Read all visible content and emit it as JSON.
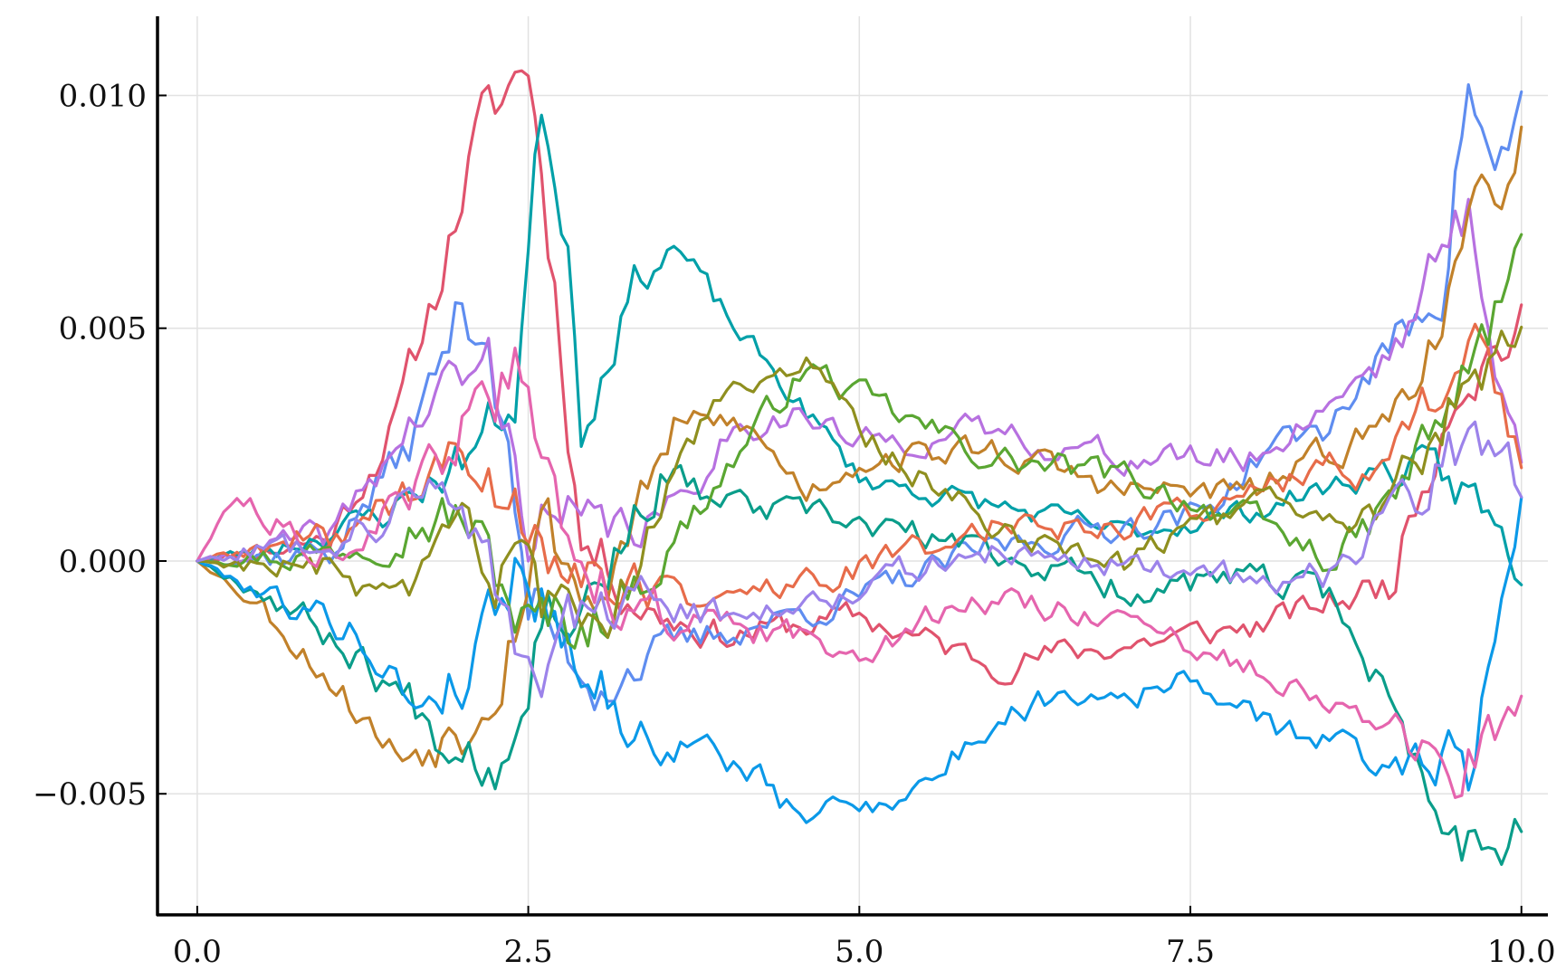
{
  "chart_data": {
    "type": "line",
    "title": "",
    "xlabel": "",
    "ylabel": "",
    "xlim": [
      -0.3,
      10.2
    ],
    "ylim": [
      -0.0076,
      0.0117
    ],
    "grid": true,
    "legend": "none",
    "x_ticks": [
      {
        "value": 0.0,
        "label": "0.0"
      },
      {
        "value": 2.5,
        "label": "2.5"
      },
      {
        "value": 5.0,
        "label": "5.0"
      },
      {
        "value": 7.5,
        "label": "7.5"
      },
      {
        "value": 10.0,
        "label": "10.0"
      }
    ],
    "y_ticks": [
      {
        "value": -0.005,
        "label": "−0.005"
      },
      {
        "value": 0.0,
        "label": "0.000"
      },
      {
        "value": 0.005,
        "label": "0.005"
      },
      {
        "value": 0.01,
        "label": "0.010"
      }
    ],
    "colors": [
      "#e0536d",
      "#00a0a8",
      "#5f8df0",
      "#b771e0",
      "#c1812a",
      "#0a9d8a",
      "#0b99e8",
      "#e76c4a",
      "#5aa632",
      "#8f8f1f",
      "#e565ae",
      "#9c83ea"
    ],
    "n_points": 201,
    "x": {
      "start": 0.0,
      "end": 10.0
    },
    "series": [
      {
        "color_index": 0,
        "seed": 11,
        "noise": 0.0005,
        "waypoints": [
          [
            0,
            0
          ],
          [
            1,
            0.0005
          ],
          [
            1.5,
            0.003
          ],
          [
            1.8,
            0.0058
          ],
          [
            2.1,
            0.009
          ],
          [
            2.5,
            0.0108
          ],
          [
            2.7,
            0.006
          ],
          [
            2.9,
            0.0005
          ],
          [
            3.4,
            -0.001
          ],
          [
            4,
            -0.0016
          ],
          [
            5,
            -0.0012
          ],
          [
            6,
            -0.0022
          ],
          [
            7,
            -0.0018
          ],
          [
            8,
            -0.0014
          ],
          [
            9,
            -0.0005
          ],
          [
            9.5,
            0.004
          ],
          [
            10,
            0.005
          ]
        ]
      },
      {
        "color_index": 1,
        "seed": 23,
        "noise": 0.0004,
        "waypoints": [
          [
            0,
            0
          ],
          [
            0.6,
            0.0003
          ],
          [
            1.4,
            0.001
          ],
          [
            2,
            0.0022
          ],
          [
            2.4,
            0.0035
          ],
          [
            2.6,
            0.0098
          ],
          [
            2.8,
            0.007
          ],
          [
            2.9,
            0.003
          ],
          [
            3.3,
            0.006
          ],
          [
            3.6,
            0.0068
          ],
          [
            4,
            0.0052
          ],
          [
            4.6,
            0.0032
          ],
          [
            5,
            0.0018
          ],
          [
            6,
            0.0012
          ],
          [
            7,
            0.0006
          ],
          [
            8,
            0.0011
          ],
          [
            9,
            0.002
          ],
          [
            9.6,
            0.0015
          ],
          [
            10,
            -0.0002
          ]
        ]
      },
      {
        "color_index": 2,
        "seed": 37,
        "noise": 0.0005,
        "waypoints": [
          [
            0,
            0
          ],
          [
            1,
            0.0002
          ],
          [
            1.6,
            0.0025
          ],
          [
            2,
            0.0055
          ],
          [
            2.2,
            0.005
          ],
          [
            2.5,
            -0.001
          ],
          [
            3,
            -0.0025
          ],
          [
            4,
            -0.0015
          ],
          [
            5,
            -0.0008
          ],
          [
            6,
            0.0003
          ],
          [
            7,
            0.0008
          ],
          [
            7.6,
            0.001
          ],
          [
            8.1,
            0.0025
          ],
          [
            8.5,
            0.0028
          ],
          [
            9,
            0.0045
          ],
          [
            9.4,
            0.006
          ],
          [
            9.6,
            0.0105
          ],
          [
            9.8,
            0.008
          ],
          [
            10,
            0.0098
          ]
        ]
      },
      {
        "color_index": 3,
        "seed": 41,
        "noise": 0.0005,
        "waypoints": [
          [
            0,
            0
          ],
          [
            1,
            0.0005
          ],
          [
            1.5,
            0.0025
          ],
          [
            1.8,
            0.0035
          ],
          [
            2.2,
            0.0042
          ],
          [
            2.5,
            0.001
          ],
          [
            3,
            0.0005
          ],
          [
            3.6,
            0.001
          ],
          [
            4,
            0.0028
          ],
          [
            4.5,
            0.0032
          ],
          [
            5,
            0.0025
          ],
          [
            6,
            0.0028
          ],
          [
            7,
            0.0022
          ],
          [
            8,
            0.0022
          ],
          [
            9,
            0.0045
          ],
          [
            9.6,
            0.0075
          ],
          [
            10,
            0.002
          ]
        ]
      },
      {
        "color_index": 4,
        "seed": 53,
        "noise": 0.0005,
        "waypoints": [
          [
            0,
            0
          ],
          [
            0.5,
            -0.001
          ],
          [
            1,
            -0.0025
          ],
          [
            1.5,
            -0.0042
          ],
          [
            2,
            -0.0035
          ],
          [
            2.3,
            -0.002
          ],
          [
            2.6,
            0.001
          ],
          [
            3,
            -0.001
          ],
          [
            3.6,
            0.0028
          ],
          [
            4.1,
            0.003
          ],
          [
            4.6,
            0.0015
          ],
          [
            5,
            0.0022
          ],
          [
            6,
            0.0024
          ],
          [
            7,
            0.0015
          ],
          [
            8,
            0.0015
          ],
          [
            9,
            0.003
          ],
          [
            9.5,
            0.006
          ],
          [
            10,
            0.0092
          ]
        ]
      },
      {
        "color_index": 5,
        "seed": 67,
        "noise": 0.0005,
        "waypoints": [
          [
            0,
            0
          ],
          [
            0.6,
            -0.0008
          ],
          [
            1.2,
            -0.002
          ],
          [
            1.8,
            -0.0035
          ],
          [
            2.3,
            -0.0042
          ],
          [
            2.6,
            -0.001
          ],
          [
            3,
            -0.0005
          ],
          [
            3.5,
            0.0018
          ],
          [
            4,
            0.0012
          ],
          [
            5,
            0.0008
          ],
          [
            6,
            0.0002
          ],
          [
            7,
            -0.0006
          ],
          [
            8,
            -0.0004
          ],
          [
            8.6,
            -0.0008
          ],
          [
            9,
            -0.003
          ],
          [
            9.3,
            -0.005
          ],
          [
            9.6,
            -0.006
          ],
          [
            10,
            -0.0055
          ]
        ]
      },
      {
        "color_index": 6,
        "seed": 79,
        "noise": 0.0005,
        "waypoints": [
          [
            0,
            0
          ],
          [
            0.6,
            -0.0008
          ],
          [
            1.2,
            -0.0015
          ],
          [
            1.6,
            -0.003
          ],
          [
            2,
            -0.0025
          ],
          [
            2.4,
            0.0
          ],
          [
            2.8,
            -0.0015
          ],
          [
            3.3,
            -0.0038
          ],
          [
            3.8,
            -0.004
          ],
          [
            4.2,
            -0.0045
          ],
          [
            4.5,
            -0.0055
          ],
          [
            5,
            -0.0052
          ],
          [
            5.5,
            -0.0048
          ],
          [
            6,
            -0.0035
          ],
          [
            6.5,
            -0.0028
          ],
          [
            7,
            -0.0028
          ],
          [
            7.6,
            -0.0026
          ],
          [
            8,
            -0.0035
          ],
          [
            8.5,
            -0.0038
          ],
          [
            9,
            -0.0045
          ],
          [
            9.3,
            -0.0038
          ],
          [
            9.6,
            -0.0045
          ],
          [
            10,
            0.0015
          ]
        ]
      },
      {
        "color_index": 7,
        "seed": 89,
        "noise": 0.0005,
        "waypoints": [
          [
            0,
            0
          ],
          [
            1,
            0.0005
          ],
          [
            1.6,
            0.0015
          ],
          [
            2,
            0.0022
          ],
          [
            2.5,
            0.001
          ],
          [
            3,
            -0.0005
          ],
          [
            4,
            -0.0008
          ],
          [
            5,
            -0.0002
          ],
          [
            6,
            0.0008
          ],
          [
            7,
            0.0008
          ],
          [
            8,
            0.0015
          ],
          [
            8.6,
            0.002
          ],
          [
            9,
            0.002
          ],
          [
            9.6,
            0.005
          ],
          [
            10,
            0.0025
          ]
        ]
      },
      {
        "color_index": 8,
        "seed": 97,
        "noise": 0.0005,
        "waypoints": [
          [
            0,
            0
          ],
          [
            1,
            0.0002
          ],
          [
            1.6,
            0.0008
          ],
          [
            2,
            0.001
          ],
          [
            2.5,
            -0.0015
          ],
          [
            3,
            -0.0012
          ],
          [
            3.5,
            0.0
          ],
          [
            4,
            0.002
          ],
          [
            4.6,
            0.0042
          ],
          [
            5,
            0.0035
          ],
          [
            6,
            0.0022
          ],
          [
            7,
            0.0018
          ],
          [
            8,
            0.0008
          ],
          [
            8.6,
            0.0
          ],
          [
            9,
            0.0012
          ],
          [
            9.6,
            0.004
          ],
          [
            10,
            0.0065
          ]
        ]
      },
      {
        "color_index": 9,
        "seed": 103,
        "noise": 0.0005,
        "waypoints": [
          [
            0,
            0
          ],
          [
            1,
            -0.0002
          ],
          [
            1.6,
            -0.0012
          ],
          [
            2,
            0.0008
          ],
          [
            2.5,
            -0.001
          ],
          [
            3,
            -0.002
          ],
          [
            3.5,
            0.0012
          ],
          [
            4,
            0.0038
          ],
          [
            4.6,
            0.0042
          ],
          [
            5,
            0.0028
          ],
          [
            6,
            0.0008
          ],
          [
            7,
            0.0
          ],
          [
            8,
            0.0012
          ],
          [
            8.5,
            0.0008
          ],
          [
            9,
            0.0012
          ],
          [
            9.5,
            0.0035
          ],
          [
            10,
            0.0055
          ]
        ]
      },
      {
        "color_index": 10,
        "seed": 113,
        "noise": 0.0005,
        "waypoints": [
          [
            0,
            0
          ],
          [
            0.3,
            0.0015
          ],
          [
            0.6,
            0.0008
          ],
          [
            1,
            0.0002
          ],
          [
            1.6,
            0.0012
          ],
          [
            2,
            0.0028
          ],
          [
            2.4,
            0.004
          ],
          [
            2.6,
            0.002
          ],
          [
            3,
            -0.0005
          ],
          [
            3.6,
            -0.0012
          ],
          [
            4,
            -0.0015
          ],
          [
            5,
            -0.0018
          ],
          [
            6,
            -0.0008
          ],
          [
            7,
            -0.0012
          ],
          [
            7.6,
            -0.0022
          ],
          [
            8,
            -0.0022
          ],
          [
            8.5,
            -0.0028
          ],
          [
            9,
            -0.0038
          ],
          [
            9.5,
            -0.0045
          ],
          [
            10,
            -0.0035
          ]
        ]
      },
      {
        "color_index": 11,
        "seed": 127,
        "noise": 0.0005,
        "waypoints": [
          [
            0,
            0
          ],
          [
            1,
            0.0005
          ],
          [
            1.6,
            0.0012
          ],
          [
            2,
            0.0018
          ],
          [
            2.4,
            -0.0015
          ],
          [
            2.6,
            -0.0025
          ],
          [
            3,
            -0.001
          ],
          [
            3.5,
            -0.0008
          ],
          [
            4,
            -0.0012
          ],
          [
            5,
            -0.0005
          ],
          [
            6,
            0.0002
          ],
          [
            7,
            0.0
          ],
          [
            8,
            -0.0005
          ],
          [
            8.6,
            -0.0003
          ],
          [
            9,
            0.0008
          ],
          [
            9.5,
            0.0025
          ],
          [
            10,
            0.0018
          ]
        ]
      }
    ]
  }
}
